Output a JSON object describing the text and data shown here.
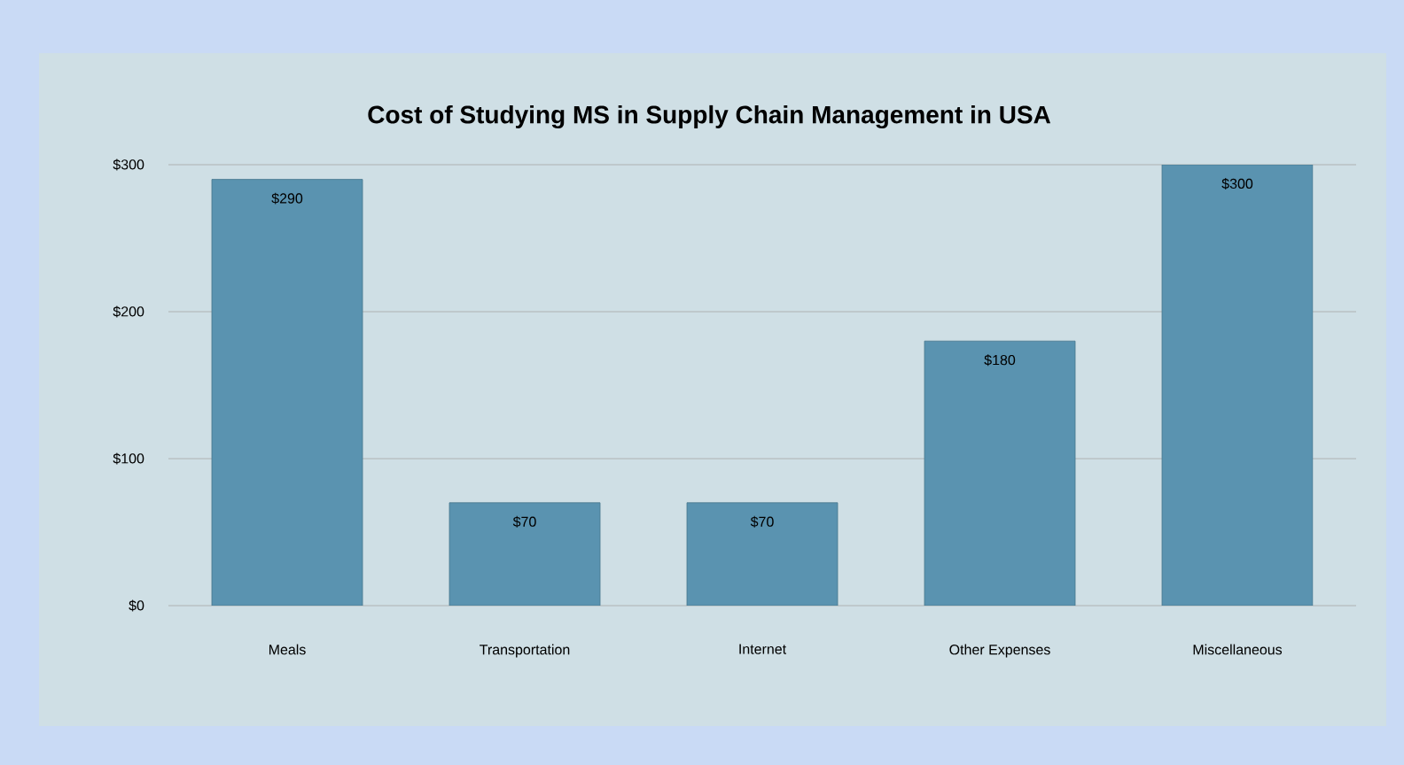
{
  "chart_data": {
    "type": "bar",
    "title": "Cost of Studying MS in Supply Chain Management in USA",
    "categories": [
      "Meals",
      "Transportation",
      "Internet",
      "Other Expenses",
      "Miscellaneous"
    ],
    "values": [
      290,
      70,
      70,
      180,
      300
    ],
    "value_labels": [
      "$290",
      "$70",
      "$70",
      "$180",
      "$300"
    ],
    "color": "#5a93b0",
    "ylim": [
      0,
      300
    ],
    "yticks": [
      {
        "value": 0,
        "label": "$0"
      },
      {
        "value": 100,
        "label": "$100"
      },
      {
        "value": 200,
        "label": "$200"
      },
      {
        "value": 300,
        "label": "$300"
      }
    ],
    "grid": "y"
  }
}
